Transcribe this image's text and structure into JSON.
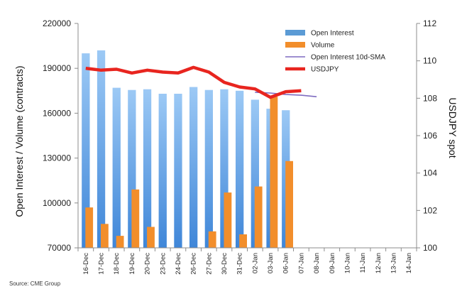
{
  "chart_data": {
    "type": "bar",
    "categories": [
      "16-Dec",
      "17-Dec",
      "18-Dec",
      "19-Dec",
      "20-Dec",
      "23-Dec",
      "24-Dec",
      "26-Dec",
      "27-Dec",
      "30-Dec",
      "31-Dec",
      "02-Jan",
      "03-Jan",
      "06-Jan",
      "07-Jan",
      "08-Jan",
      "09-Jan",
      "10-Jan",
      "11-Jan",
      "12-Jan",
      "13-Jan",
      "14-Jan"
    ],
    "series": [
      {
        "name": "Open Interest",
        "kind": "bar",
        "axis": "left",
        "color": "#5b9bd5",
        "values": [
          200000,
          202000,
          177000,
          175500,
          176000,
          173000,
          173000,
          177500,
          175500,
          176000,
          175000,
          169000,
          163000,
          162000,
          null,
          null,
          null,
          null,
          null,
          null,
          null,
          null
        ]
      },
      {
        "name": "Volume",
        "kind": "bar",
        "axis": "left",
        "color": "#f28e2b",
        "values": [
          97000,
          86000,
          78000,
          109000,
          84000,
          null,
          null,
          null,
          81000,
          107000,
          79000,
          111000,
          171000,
          128000,
          null,
          null,
          null,
          null,
          null,
          null,
          null,
          null
        ]
      },
      {
        "name": "Open Interest 10d-SMA",
        "kind": "line",
        "axis": "left",
        "color": "#7e6cc0",
        "values": [
          null,
          null,
          null,
          null,
          null,
          null,
          null,
          null,
          null,
          null,
          null,
          174000,
          173500,
          172500,
          172000,
          171000,
          null,
          null,
          null,
          null,
          null,
          null
        ]
      },
      {
        "name": "USDJPY",
        "kind": "line",
        "axis": "right",
        "color": "#e8251f",
        "values": [
          109.6,
          109.5,
          109.55,
          109.35,
          109.5,
          109.4,
          109.35,
          109.65,
          109.4,
          108.85,
          108.6,
          108.5,
          108.05,
          108.35,
          108.4,
          null,
          null,
          null,
          null,
          null,
          null,
          null
        ]
      }
    ],
    "xlabel": "",
    "ylabel": "Open Interest / Volume (contracts)",
    "y2label": "USDJPY spot",
    "ylim": [
      70000,
      220000
    ],
    "yticks": [
      "70000",
      "100000",
      "130000",
      "160000",
      "190000",
      "220000"
    ],
    "y2lim": [
      100,
      112
    ],
    "y2ticks": [
      "100",
      "102",
      "104",
      "106",
      "108",
      "110",
      "112"
    ],
    "grid": false,
    "legend": "top-right",
    "legend_entries": [
      "Open Interest",
      "Volume",
      "Open Interest 10d-SMA",
      "USDJPY"
    ],
    "source": "Source: CME Group"
  }
}
